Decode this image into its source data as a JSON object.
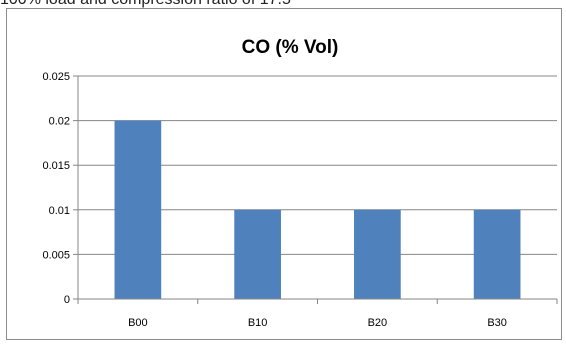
{
  "caption": "100% load and compression ratio of 17.5",
  "colors": {
    "bar": "#4f81bd",
    "grid": "#868686",
    "frame": "#8c8c8c"
  },
  "chart_data": {
    "type": "bar",
    "title": "CO (% Vol)",
    "xlabel": "",
    "ylabel": "",
    "categories": [
      "B00",
      "B10",
      "B20",
      "B30"
    ],
    "values": [
      0.02,
      0.01,
      0.01,
      0.01
    ],
    "ylim": [
      0,
      0.025
    ],
    "yticks": [
      0,
      0.005,
      0.01,
      0.015,
      0.02,
      0.025
    ],
    "ytick_labels": [
      "0",
      "0.005",
      "0.01",
      "0.015",
      "0.02",
      "0.025"
    ],
    "grid": true,
    "legend": "none"
  }
}
